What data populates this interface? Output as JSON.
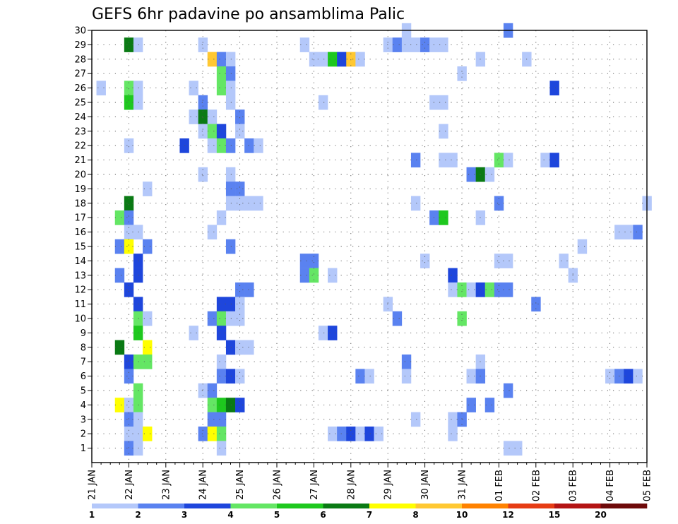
{
  "chart_data": {
    "type": "heatmap",
    "title": "GEFS 6hr padavine po ansamblima Palic",
    "x_ticks": [
      "21 JAN",
      "22 JAN",
      "23 JAN",
      "24 JAN",
      "25 JAN",
      "26 JAN",
      "27 JAN",
      "28 JAN",
      "29 JAN",
      "30 JAN",
      "31 JAN",
      "01 FEB",
      "02 FEB",
      "03 FEB",
      "04 FEB",
      "05 FEB"
    ],
    "y_ticks": [
      1,
      2,
      3,
      4,
      5,
      6,
      7,
      8,
      9,
      10,
      11,
      12,
      13,
      14,
      15,
      16,
      17,
      18,
      19,
      20,
      21,
      22,
      23,
      24,
      25,
      26,
      27,
      28,
      29,
      30
    ],
    "xlim_steps": [
      0,
      60
    ],
    "ylim": [
      0,
      30
    ],
    "grid": true,
    "colorbar": {
      "levels": [
        1,
        2,
        3,
        4,
        5,
        6,
        7,
        8,
        10,
        12,
        15,
        20
      ],
      "labels": [
        "1",
        "2",
        "3",
        "4",
        "5",
        "6",
        "7",
        "8",
        "10",
        "12",
        "15",
        "20"
      ],
      "colors": [
        "#b4c8fa",
        "#5a82f0",
        "#1e46dc",
        "#64e664",
        "#1ec81e",
        "#0a7a14",
        "#ffff00",
        "#ffc832",
        "#ff8200",
        "#e63c14",
        "#b41414",
        "#6e0a0a"
      ]
    },
    "cells": [
      [
        4,
        29,
        6
      ],
      [
        5,
        29,
        1
      ],
      [
        12,
        29,
        1
      ],
      [
        23,
        29,
        1
      ],
      [
        32,
        29,
        1
      ],
      [
        33,
        29,
        2
      ],
      [
        34,
        29,
        1
      ],
      [
        35,
        29,
        1
      ],
      [
        36,
        29,
        2
      ],
      [
        37,
        29,
        1
      ],
      [
        38,
        29,
        1
      ],
      [
        34,
        30,
        1
      ],
      [
        45,
        30,
        2
      ],
      [
        13,
        28,
        8
      ],
      [
        14,
        28,
        2
      ],
      [
        15,
        28,
        1
      ],
      [
        24,
        28,
        1
      ],
      [
        25,
        28,
        1
      ],
      [
        26,
        28,
        5
      ],
      [
        27,
        28,
        3
      ],
      [
        28,
        28,
        8
      ],
      [
        29,
        28,
        1
      ],
      [
        42,
        28,
        1
      ],
      [
        47,
        28,
        1
      ],
      [
        14,
        27,
        4
      ],
      [
        15,
        27,
        2
      ],
      [
        40,
        27,
        1
      ],
      [
        1,
        26,
        1
      ],
      [
        4,
        26,
        4
      ],
      [
        5,
        26,
        1
      ],
      [
        11,
        26,
        1
      ],
      [
        14,
        26,
        4
      ],
      [
        15,
        26,
        1
      ],
      [
        50,
        26,
        3
      ],
      [
        4,
        25,
        5
      ],
      [
        5,
        25,
        1
      ],
      [
        12,
        25,
        2
      ],
      [
        15,
        25,
        1
      ],
      [
        25,
        25,
        1
      ],
      [
        37,
        25,
        1
      ],
      [
        38,
        25,
        1
      ],
      [
        11,
        24,
        1
      ],
      [
        12,
        24,
        6
      ],
      [
        13,
        24,
        1
      ],
      [
        16,
        24,
        2
      ],
      [
        12,
        23,
        1
      ],
      [
        13,
        23,
        4
      ],
      [
        14,
        23,
        3
      ],
      [
        16,
        23,
        1
      ],
      [
        38,
        23,
        1
      ],
      [
        4,
        22,
        1
      ],
      [
        10,
        22,
        3
      ],
      [
        13,
        22,
        1
      ],
      [
        14,
        22,
        4
      ],
      [
        15,
        22,
        2
      ],
      [
        17,
        22,
        2
      ],
      [
        18,
        22,
        1
      ],
      [
        35,
        21,
        2
      ],
      [
        38,
        21,
        1
      ],
      [
        39,
        21,
        1
      ],
      [
        44,
        21,
        4
      ],
      [
        45,
        21,
        1
      ],
      [
        49,
        21,
        1
      ],
      [
        50,
        21,
        3
      ],
      [
        12,
        20,
        1
      ],
      [
        15,
        20,
        1
      ],
      [
        41,
        20,
        2
      ],
      [
        42,
        20,
        6
      ],
      [
        43,
        20,
        1
      ],
      [
        6,
        19,
        1
      ],
      [
        15,
        19,
        2
      ],
      [
        16,
        19,
        2
      ],
      [
        4,
        18,
        6
      ],
      [
        15,
        18,
        1
      ],
      [
        16,
        18,
        1
      ],
      [
        17,
        18,
        1
      ],
      [
        18,
        18,
        1
      ],
      [
        35,
        18,
        1
      ],
      [
        44,
        18,
        2
      ],
      [
        60,
        18,
        1
      ],
      [
        3,
        17,
        4
      ],
      [
        4,
        17,
        2
      ],
      [
        14,
        17,
        1
      ],
      [
        37,
        17,
        2
      ],
      [
        38,
        17,
        5
      ],
      [
        42,
        17,
        1
      ],
      [
        4,
        16,
        1
      ],
      [
        5,
        16,
        1
      ],
      [
        13,
        16,
        1
      ],
      [
        57,
        16,
        1
      ],
      [
        58,
        16,
        1
      ],
      [
        59,
        16,
        2
      ],
      [
        3,
        15,
        2
      ],
      [
        4,
        15,
        7
      ],
      [
        6,
        15,
        2
      ],
      [
        15,
        15,
        2
      ],
      [
        53,
        15,
        1
      ],
      [
        5,
        14,
        3
      ],
      [
        23,
        14,
        2
      ],
      [
        24,
        14,
        2
      ],
      [
        36,
        14,
        1
      ],
      [
        44,
        14,
        1
      ],
      [
        45,
        14,
        1
      ],
      [
        51,
        14,
        1
      ],
      [
        3,
        13,
        2
      ],
      [
        5,
        13,
        3
      ],
      [
        23,
        13,
        2
      ],
      [
        24,
        13,
        4
      ],
      [
        26,
        13,
        1
      ],
      [
        39,
        13,
        3
      ],
      [
        52,
        13,
        1
      ],
      [
        4,
        12,
        3
      ],
      [
        16,
        12,
        2
      ],
      [
        17,
        12,
        2
      ],
      [
        39,
        12,
        1
      ],
      [
        40,
        12,
        4
      ],
      [
        41,
        12,
        1
      ],
      [
        42,
        12,
        3
      ],
      [
        43,
        12,
        4
      ],
      [
        44,
        12,
        2
      ],
      [
        45,
        12,
        2
      ],
      [
        5,
        11,
        3
      ],
      [
        14,
        11,
        3
      ],
      [
        15,
        11,
        3
      ],
      [
        16,
        11,
        1
      ],
      [
        32,
        11,
        1
      ],
      [
        48,
        11,
        2
      ],
      [
        5,
        10,
        4
      ],
      [
        6,
        10,
        1
      ],
      [
        13,
        10,
        2
      ],
      [
        14,
        10,
        4
      ],
      [
        15,
        10,
        1
      ],
      [
        16,
        10,
        1
      ],
      [
        33,
        10,
        2
      ],
      [
        40,
        10,
        4
      ],
      [
        5,
        9,
        5
      ],
      [
        11,
        9,
        1
      ],
      [
        14,
        9,
        3
      ],
      [
        25,
        9,
        1
      ],
      [
        26,
        9,
        3
      ],
      [
        3,
        8,
        6
      ],
      [
        6,
        8,
        7
      ],
      [
        15,
        8,
        3
      ],
      [
        16,
        8,
        1
      ],
      [
        17,
        8,
        1
      ],
      [
        4,
        7,
        3
      ],
      [
        5,
        7,
        4
      ],
      [
        6,
        7,
        4
      ],
      [
        14,
        7,
        1
      ],
      [
        34,
        7,
        2
      ],
      [
        42,
        7,
        1
      ],
      [
        4,
        6,
        2
      ],
      [
        14,
        6,
        2
      ],
      [
        15,
        6,
        3
      ],
      [
        16,
        6,
        1
      ],
      [
        29,
        6,
        2
      ],
      [
        30,
        6,
        1
      ],
      [
        34,
        6,
        1
      ],
      [
        41,
        6,
        1
      ],
      [
        42,
        6,
        2
      ],
      [
        56,
        6,
        1
      ],
      [
        57,
        6,
        2
      ],
      [
        58,
        6,
        3
      ],
      [
        59,
        6,
        1
      ],
      [
        5,
        5,
        4
      ],
      [
        12,
        5,
        1
      ],
      [
        13,
        5,
        2
      ],
      [
        45,
        5,
        2
      ],
      [
        3,
        4,
        7
      ],
      [
        4,
        4,
        1
      ],
      [
        5,
        4,
        4
      ],
      [
        13,
        4,
        4
      ],
      [
        14,
        4,
        5
      ],
      [
        15,
        4,
        6
      ],
      [
        16,
        4,
        3
      ],
      [
        41,
        4,
        2
      ],
      [
        43,
        4,
        2
      ],
      [
        4,
        3,
        2
      ],
      [
        5,
        3,
        1
      ],
      [
        13,
        3,
        2
      ],
      [
        14,
        3,
        2
      ],
      [
        35,
        3,
        1
      ],
      [
        39,
        3,
        1
      ],
      [
        40,
        3,
        2
      ],
      [
        4,
        2,
        1
      ],
      [
        5,
        2,
        1
      ],
      [
        6,
        2,
        7
      ],
      [
        12,
        2,
        2
      ],
      [
        13,
        2,
        7
      ],
      [
        14,
        2,
        4
      ],
      [
        26,
        2,
        1
      ],
      [
        27,
        2,
        2
      ],
      [
        28,
        2,
        3
      ],
      [
        29,
        2,
        1
      ],
      [
        30,
        2,
        3
      ],
      [
        31,
        2,
        1
      ],
      [
        39,
        2,
        1
      ],
      [
        4,
        1,
        2
      ],
      [
        5,
        1,
        1
      ],
      [
        14,
        1,
        1
      ],
      [
        45,
        1,
        1
      ],
      [
        46,
        1,
        1
      ]
    ]
  }
}
